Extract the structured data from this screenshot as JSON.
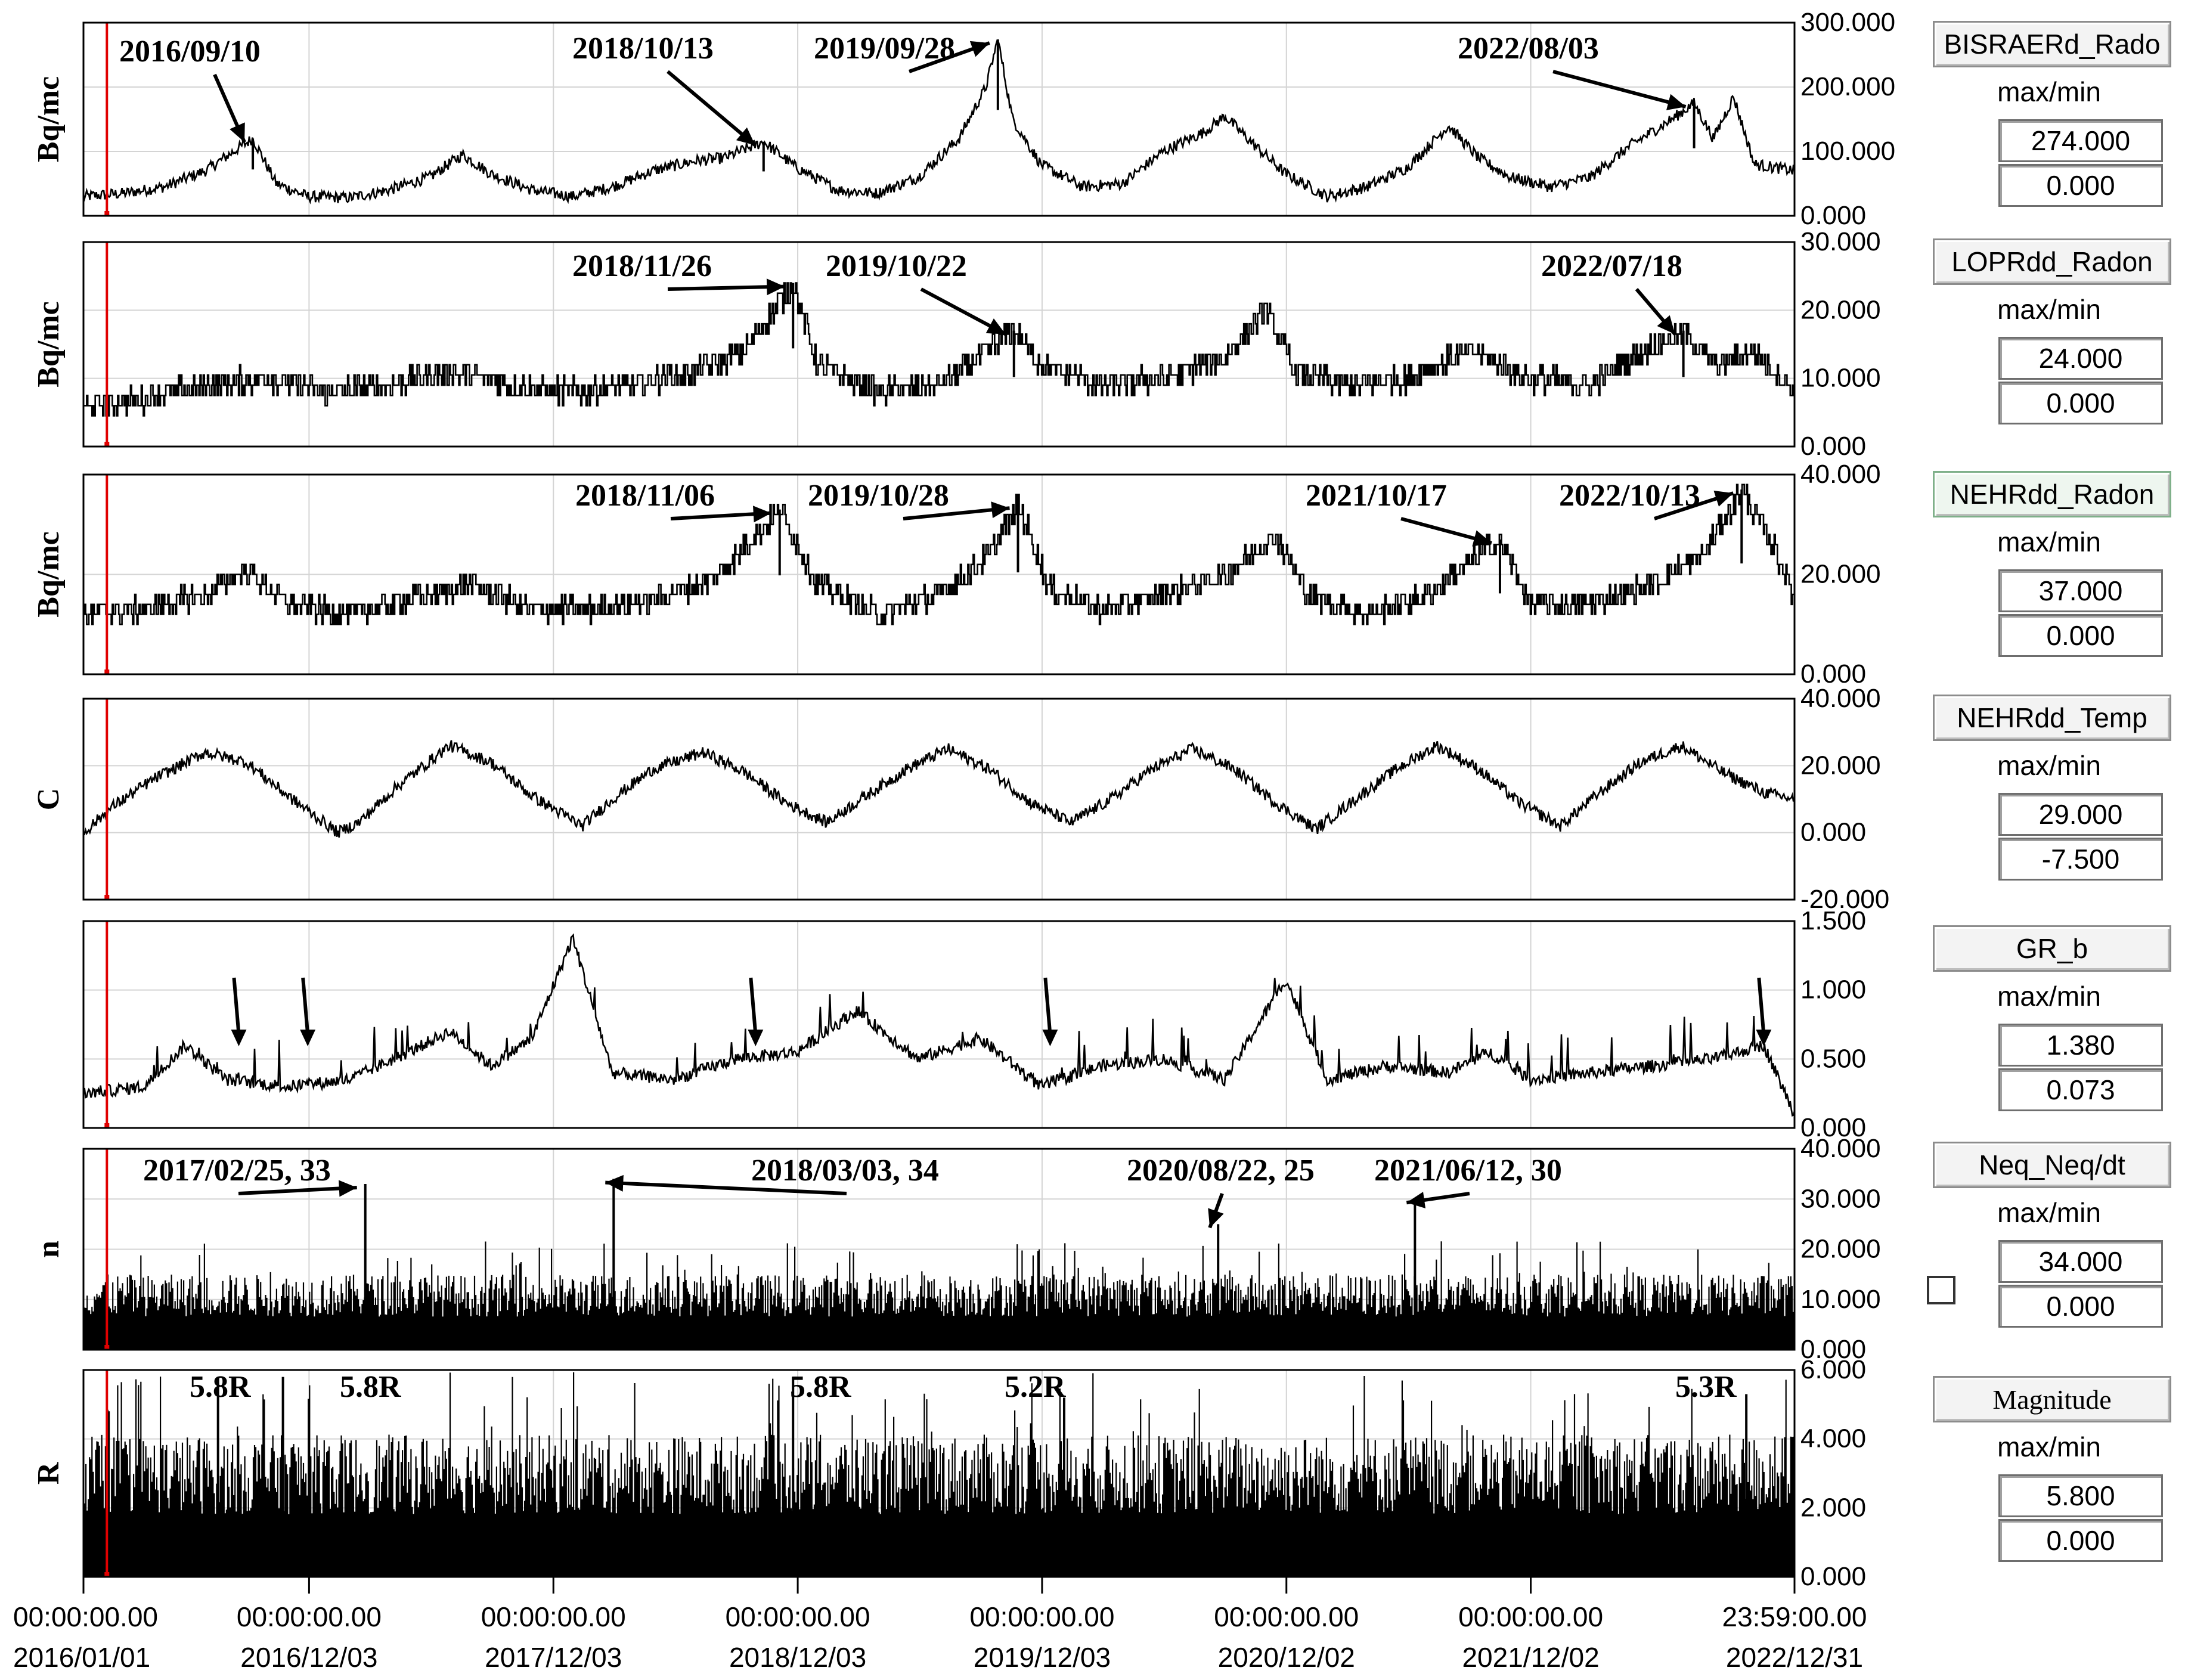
{
  "chart_data": {
    "type": "line",
    "x_range": [
      "2016-01-01",
      "2022-12-31"
    ],
    "x_ticks": [
      {
        "date": "2016-01-01",
        "time": "00:00:00.00",
        "label": "2016/01/01"
      },
      {
        "date": "2016-12-03",
        "time": "00:00:00.00",
        "label": "2016/12/03"
      },
      {
        "date": "2017-12-03",
        "time": "00:00:00.00",
        "label": "2017/12/03"
      },
      {
        "date": "2018-12-03",
        "time": "00:00:00.00",
        "label": "2018/12/03"
      },
      {
        "date": "2019-12-03",
        "time": "00:00:00.00",
        "label": "2019/12/03"
      },
      {
        "date": "2020-12-02",
        "time": "00:00:00.00",
        "label": "2020/12/02"
      },
      {
        "date": "2021-12-02",
        "time": "00:00:00.00",
        "label": "2021/12/02"
      },
      {
        "date": "2022-12-31",
        "time": "23:59:00.00",
        "label": "2022/12/31"
      }
    ],
    "cursor_date": "2016-02-05",
    "panels": [
      {
        "id": "bisraerd",
        "series_name": "BISRAERd_Rado",
        "ylabel": "Bq/mc",
        "ylim": [
          0,
          300
        ],
        "yticks": [
          "300.000",
          "200.000",
          "100.000",
          "0.000"
        ],
        "ytick_values": [
          300,
          200,
          100,
          0
        ],
        "max": "274.000",
        "min": "0.000",
        "style": "line",
        "annotations": [
          {
            "text": "2016/09/10",
            "date": "2016-09-10",
            "value": 120
          },
          {
            "text": "2018/10/13",
            "date": "2018-10-13",
            "value": 115
          },
          {
            "text": "2019/09/28",
            "date": "2019-09-28",
            "value": 274
          },
          {
            "text": "2022/08/03",
            "date": "2022-08-03",
            "value": 175
          }
        ],
        "points": [
          [
            "2016-01-01",
            30
          ],
          [
            "2016-03-01",
            35
          ],
          [
            "2016-05-01",
            45
          ],
          [
            "2016-07-01",
            70
          ],
          [
            "2016-09-10",
            120
          ],
          [
            "2016-10-15",
            50
          ],
          [
            "2016-12-01",
            30
          ],
          [
            "2017-02-01",
            28
          ],
          [
            "2017-04-01",
            40
          ],
          [
            "2017-06-01",
            60
          ],
          [
            "2017-07-20",
            95
          ],
          [
            "2017-09-01",
            65
          ],
          [
            "2017-11-01",
            40
          ],
          [
            "2018-01-01",
            30
          ],
          [
            "2018-03-01",
            45
          ],
          [
            "2018-05-01",
            70
          ],
          [
            "2018-07-01",
            85
          ],
          [
            "2018-08-15",
            90
          ],
          [
            "2018-10-13",
            115
          ],
          [
            "2018-12-01",
            75
          ],
          [
            "2019-02-01",
            40
          ],
          [
            "2019-04-01",
            35
          ],
          [
            "2019-06-01",
            60
          ],
          [
            "2019-08-01",
            120
          ],
          [
            "2019-09-10",
            200
          ],
          [
            "2019-09-28",
            274
          ],
          [
            "2019-10-20",
            150
          ],
          [
            "2019-12-01",
            80
          ],
          [
            "2020-02-01",
            45
          ],
          [
            "2020-04-01",
            50
          ],
          [
            "2020-06-01",
            100
          ],
          [
            "2020-08-01",
            130
          ],
          [
            "2020-09-01",
            155
          ],
          [
            "2020-10-15",
            110
          ],
          [
            "2020-12-01",
            65
          ],
          [
            "2021-02-01",
            30
          ],
          [
            "2021-04-01",
            45
          ],
          [
            "2021-06-01",
            75
          ],
          [
            "2021-08-01",
            140
          ],
          [
            "2021-09-15",
            90
          ],
          [
            "2021-11-01",
            60
          ],
          [
            "2022-01-01",
            45
          ],
          [
            "2022-03-01",
            60
          ],
          [
            "2022-05-01",
            110
          ],
          [
            "2022-07-01",
            150
          ],
          [
            "2022-08-03",
            175
          ],
          [
            "2022-09-01",
            120
          ],
          [
            "2022-10-01",
            185
          ],
          [
            "2022-11-01",
            80
          ],
          [
            "2022-12-31",
            70
          ]
        ]
      },
      {
        "id": "loprdd",
        "series_name": "LOPRdd_Radon",
        "ylabel": "Bq/mc",
        "ylim": [
          0,
          30
        ],
        "yticks": [
          "30.000",
          "20.000",
          "10.000",
          "0.000"
        ],
        "ytick_values": [
          30,
          20,
          10,
          0
        ],
        "max": "24.000",
        "min": "0.000",
        "style": "step",
        "annotations": [
          {
            "text": "2018/11/26",
            "date": "2018-11-26",
            "value": 24
          },
          {
            "text": "2019/10/22",
            "date": "2019-10-22",
            "value": 17
          },
          {
            "text": "2022/07/18",
            "date": "2022-07-18",
            "value": 17
          }
        ],
        "points": [
          [
            "2016-01-01",
            6
          ],
          [
            "2016-04-01",
            7
          ],
          [
            "2016-07-01",
            9
          ],
          [
            "2016-10-01",
            10
          ],
          [
            "2017-01-01",
            8
          ],
          [
            "2017-04-01",
            9
          ],
          [
            "2017-07-01",
            11
          ],
          [
            "2017-10-01",
            9
          ],
          [
            "2018-01-01",
            8
          ],
          [
            "2018-04-01",
            9
          ],
          [
            "2018-07-01",
            11
          ],
          [
            "2018-09-15",
            14
          ],
          [
            "2018-11-26",
            24
          ],
          [
            "2019-01-01",
            12
          ],
          [
            "2019-04-01",
            8
          ],
          [
            "2019-07-01",
            9
          ],
          [
            "2019-09-01",
            13
          ],
          [
            "2019-10-22",
            17
          ],
          [
            "2019-12-01",
            12
          ],
          [
            "2020-03-01",
            9
          ],
          [
            "2020-06-01",
            10
          ],
          [
            "2020-09-01",
            13
          ],
          [
            "2020-11-01",
            20
          ],
          [
            "2020-12-15",
            11
          ],
          [
            "2021-03-01",
            9
          ],
          [
            "2021-06-01",
            10
          ],
          [
            "2021-09-01",
            14
          ],
          [
            "2021-12-01",
            10
          ],
          [
            "2022-03-01",
            9
          ],
          [
            "2022-05-01",
            13
          ],
          [
            "2022-07-18",
            17
          ],
          [
            "2022-09-01",
            12
          ],
          [
            "2022-11-01",
            14
          ],
          [
            "2022-12-31",
            8
          ]
        ]
      },
      {
        "id": "nehrdd_radon",
        "series_name": "NEHRdd_Radon",
        "ylabel": "Bq/mc",
        "ylim": [
          0,
          40
        ],
        "yticks": [
          "40.000",
          "20.000",
          "0.000"
        ],
        "ytick_values": [
          40,
          20,
          0
        ],
        "max": "37.000",
        "min": "0.000",
        "style": "step",
        "active": true,
        "annotations": [
          {
            "text": "2018/11/06",
            "date": "2018-11-06",
            "value": 33
          },
          {
            "text": "2019/10/28",
            "date": "2019-10-28",
            "value": 34
          },
          {
            "text": "2021/10/17",
            "date": "2021-10-17",
            "value": 27
          },
          {
            "text": "2022/10/13",
            "date": "2022-10-13",
            "value": 37
          }
        ],
        "points": [
          [
            "2016-01-01",
            12
          ],
          [
            "2016-04-01",
            13
          ],
          [
            "2016-07-01",
            16
          ],
          [
            "2016-09-01",
            21
          ],
          [
            "2016-11-01",
            14
          ],
          [
            "2017-02-01",
            12
          ],
          [
            "2017-05-01",
            15
          ],
          [
            "2017-08-01",
            18
          ],
          [
            "2017-11-01",
            13
          ],
          [
            "2018-02-01",
            13
          ],
          [
            "2018-05-01",
            15
          ],
          [
            "2018-08-01",
            19
          ],
          [
            "2018-11-06",
            33
          ],
          [
            "2019-01-01",
            18
          ],
          [
            "2019-04-01",
            12
          ],
          [
            "2019-07-01",
            16
          ],
          [
            "2019-09-15",
            24
          ],
          [
            "2019-10-28",
            34
          ],
          [
            "2019-12-15",
            17
          ],
          [
            "2020-03-01",
            13
          ],
          [
            "2020-06-01",
            16
          ],
          [
            "2020-09-01",
            20
          ],
          [
            "2020-11-15",
            28
          ],
          [
            "2021-01-01",
            16
          ],
          [
            "2021-04-01",
            12
          ],
          [
            "2021-07-01",
            16
          ],
          [
            "2021-10-17",
            27
          ],
          [
            "2021-12-01",
            14
          ],
          [
            "2022-03-01",
            14
          ],
          [
            "2022-06-01",
            18
          ],
          [
            "2022-08-15",
            24
          ],
          [
            "2022-10-13",
            37
          ],
          [
            "2022-12-01",
            25
          ],
          [
            "2022-12-31",
            15
          ]
        ]
      },
      {
        "id": "nehrdd_temp",
        "series_name": "NEHRdd_Temp",
        "ylabel": "C",
        "ylim": [
          -20,
          40
        ],
        "yticks": [
          "40.000",
          "20.000",
          "0.000",
          "-20.000"
        ],
        "ytick_values": [
          40,
          20,
          0,
          -20
        ],
        "max": "29.000",
        "min": "-7.500",
        "style": "line",
        "annotations": [],
        "points": [
          [
            "2016-01-01",
            0
          ],
          [
            "2016-02-15",
            8
          ],
          [
            "2016-04-15",
            16
          ],
          [
            "2016-07-01",
            24
          ],
          [
            "2016-09-01",
            21
          ],
          [
            "2016-11-01",
            11
          ],
          [
            "2017-01-15",
            0
          ],
          [
            "2017-02-15",
            3
          ],
          [
            "2017-04-15",
            14
          ],
          [
            "2017-07-01",
            26
          ],
          [
            "2017-09-01",
            21
          ],
          [
            "2017-11-01",
            11
          ],
          [
            "2018-01-15",
            2
          ],
          [
            "2018-03-01",
            10
          ],
          [
            "2018-05-01",
            19
          ],
          [
            "2018-07-15",
            24
          ],
          [
            "2018-09-15",
            18
          ],
          [
            "2018-11-15",
            9
          ],
          [
            "2019-01-15",
            3
          ],
          [
            "2019-03-15",
            11
          ],
          [
            "2019-05-15",
            19
          ],
          [
            "2019-07-15",
            25
          ],
          [
            "2019-09-15",
            19
          ],
          [
            "2019-11-15",
            9
          ],
          [
            "2020-01-15",
            3
          ],
          [
            "2020-03-15",
            10
          ],
          [
            "2020-05-15",
            19
          ],
          [
            "2020-07-15",
            25
          ],
          [
            "2020-09-15",
            19
          ],
          [
            "2020-11-15",
            9
          ],
          [
            "2021-01-15",
            1
          ],
          [
            "2021-03-15",
            10
          ],
          [
            "2021-05-15",
            19
          ],
          [
            "2021-07-15",
            26
          ],
          [
            "2021-09-15",
            19
          ],
          [
            "2021-11-15",
            9
          ],
          [
            "2022-01-15",
            2
          ],
          [
            "2022-03-15",
            12
          ],
          [
            "2022-05-15",
            21
          ],
          [
            "2022-07-15",
            26
          ],
          [
            "2022-09-15",
            18
          ],
          [
            "2022-11-15",
            12
          ],
          [
            "2022-12-31",
            10
          ]
        ]
      },
      {
        "id": "gr_b",
        "series_name": "GR_b",
        "ylabel": "",
        "ylim": [
          0,
          1.5
        ],
        "yticks": [
          "1.500",
          "1.000",
          "0.500",
          "0.000"
        ],
        "ytick_values": [
          1.5,
          1.0,
          0.5,
          0
        ],
        "max": "1.380",
        "min": "0.073",
        "style": "line",
        "annotations": [],
        "arrow_dates": [
          "2016-08-20",
          "2016-12-01",
          "2018-10-01",
          "2019-12-15",
          "2022-11-15"
        ],
        "points": [
          [
            "2016-01-01",
            0.25
          ],
          [
            "2016-04-01",
            0.3
          ],
          [
            "2016-06-01",
            0.6
          ],
          [
            "2016-08-01",
            0.35
          ],
          [
            "2016-11-01",
            0.3
          ],
          [
            "2017-02-01",
            0.35
          ],
          [
            "2017-05-01",
            0.55
          ],
          [
            "2017-07-01",
            0.7
          ],
          [
            "2017-09-01",
            0.45
          ],
          [
            "2017-11-01",
            0.65
          ],
          [
            "2018-01-01",
            1.38
          ],
          [
            "2018-03-01",
            0.4
          ],
          [
            "2018-06-01",
            0.35
          ],
          [
            "2018-09-01",
            0.5
          ],
          [
            "2018-12-01",
            0.55
          ],
          [
            "2019-03-01",
            0.85
          ],
          [
            "2019-06-01",
            0.5
          ],
          [
            "2019-09-01",
            0.65
          ],
          [
            "2019-12-01",
            0.3
          ],
          [
            "2020-03-01",
            0.45
          ],
          [
            "2020-06-01",
            0.5
          ],
          [
            "2020-09-01",
            0.35
          ],
          [
            "2020-12-01",
            1.08
          ],
          [
            "2021-02-01",
            0.35
          ],
          [
            "2021-05-01",
            0.45
          ],
          [
            "2021-08-01",
            0.4
          ],
          [
            "2021-10-01",
            0.55
          ],
          [
            "2021-12-01",
            0.35
          ],
          [
            "2022-03-01",
            0.4
          ],
          [
            "2022-06-01",
            0.45
          ],
          [
            "2022-09-01",
            0.5
          ],
          [
            "2022-11-15",
            0.6
          ],
          [
            "2022-12-31",
            0.1
          ]
        ]
      },
      {
        "id": "neq",
        "series_name": "Neq_Neq/dt",
        "ylabel": "n",
        "ylim": [
          0,
          40
        ],
        "yticks": [
          "40.000",
          "30.000",
          "20.000",
          "10.000",
          "0.000"
        ],
        "ytick_values": [
          40,
          30,
          20,
          10,
          0
        ],
        "max": "34.000",
        "min": "0.000",
        "style": "bars",
        "annotations": [
          {
            "text": "2017/02/25, 33",
            "date": "2017-02-25",
            "value": 33
          },
          {
            "text": "2018/03/03, 34",
            "date": "2018-03-03",
            "value": 34
          },
          {
            "text": "2020/08/22, 25",
            "date": "2020-08-22",
            "value": 25
          },
          {
            "text": "2021/06/12, 30",
            "date": "2021-06-12",
            "value": 30
          }
        ],
        "base_level": 12
      },
      {
        "id": "magnitude",
        "series_name": "Magnitude",
        "ylabel": "R",
        "ylim": [
          0,
          6
        ],
        "yticks": [
          "6.000",
          "4.000",
          "2.000",
          "0.000"
        ],
        "ytick_values": [
          6,
          4,
          2,
          0
        ],
        "max": "5.800",
        "min": "0.000",
        "style": "bars",
        "annotations": [
          {
            "text": "5.8R",
            "date": "2016-07-20",
            "value": 5.8
          },
          {
            "text": "5.8R",
            "date": "2016-10-25",
            "value": 5.8
          },
          {
            "text": "5.8R",
            "date": "2018-11-26",
            "value": 5.8
          },
          {
            "text": "5.2R",
            "date": "2020-01-05",
            "value": 5.2
          },
          {
            "text": "5.3R",
            "date": "2022-10-20",
            "value": 5.3
          }
        ],
        "base_level": 3.3
      }
    ]
  },
  "checkbox_checked": false
}
